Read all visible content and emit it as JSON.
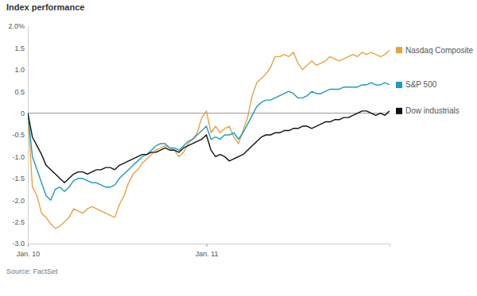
{
  "chart_data": {
    "type": "line",
    "title": "Index performance",
    "source": "Source: FactSet",
    "legend": "right",
    "categories": [
      "Jan. 10",
      null,
      null,
      null,
      null,
      null,
      null,
      null,
      null,
      null,
      null,
      null,
      null,
      null,
      null,
      null,
      null,
      null,
      null,
      null,
      null,
      null,
      null,
      null,
      null,
      null,
      null,
      null,
      null,
      null,
      null,
      null,
      null,
      null,
      null,
      null,
      null,
      null,
      null,
      "Jan. 11",
      null,
      null,
      null,
      null,
      null,
      null,
      null,
      null,
      null,
      null,
      null,
      null,
      null,
      null,
      null,
      null,
      null,
      null,
      null,
      null,
      null,
      null,
      null,
      null,
      null,
      null,
      null,
      null,
      null,
      null,
      null,
      null,
      null,
      null,
      null,
      null,
      null,
      null,
      null,
      null
    ],
    "ylim": [
      -3,
      2
    ],
    "yticks": [
      {
        "value": -3,
        "label": "-3.0"
      },
      -2.5,
      {
        "value": -2,
        "label": "-2.0"
      },
      -1.5,
      {
        "value": -1,
        "label": "-1.0"
      },
      -0.5,
      0,
      0.5,
      {
        "value": 1,
        "label": "1.0"
      },
      1.5,
      {
        "value": 2,
        "label": "2.0%"
      }
    ],
    "series": [
      {
        "name": "Nasdaq Composite",
        "color": "#e8a33d",
        "values": [
          0,
          -1.7,
          -1.9,
          -2.3,
          -2.4,
          -2.55,
          -2.65,
          -2.6,
          -2.5,
          -2.4,
          -2.2,
          -2.25,
          -2.3,
          -2.2,
          -2.15,
          -2.2,
          -2.25,
          -2.3,
          -2.35,
          -2.4,
          -2.1,
          -1.9,
          -1.6,
          -1.4,
          -1.3,
          -1.15,
          -1.05,
          -0.95,
          -0.85,
          -0.8,
          -0.75,
          -0.8,
          -0.85,
          -1.0,
          -0.9,
          -0.7,
          -0.6,
          -0.45,
          -0.1,
          0.05,
          -0.45,
          -0.3,
          -0.45,
          -0.35,
          -0.3,
          -0.55,
          -0.7,
          -0.4,
          -0.1,
          0.4,
          0.7,
          0.8,
          0.9,
          1.05,
          1.3,
          1.3,
          1.35,
          1.3,
          1.4,
          1.15,
          1.0,
          1.1,
          1.2,
          1.1,
          1.15,
          1.2,
          1.3,
          1.25,
          1.2,
          1.25,
          1.3,
          1.35,
          1.3,
          1.4,
          1.35,
          1.4,
          1.35,
          1.3,
          1.35,
          1.45
        ]
      },
      {
        "name": "S&P 500",
        "color": "#1b9cc6",
        "values": [
          0,
          -1.0,
          -1.3,
          -1.6,
          -1.9,
          -2.0,
          -1.75,
          -1.7,
          -1.8,
          -1.7,
          -1.55,
          -1.5,
          -1.5,
          -1.55,
          -1.6,
          -1.6,
          -1.65,
          -1.7,
          -1.7,
          -1.65,
          -1.5,
          -1.4,
          -1.3,
          -1.2,
          -1.1,
          -1.0,
          -0.95,
          -0.85,
          -0.75,
          -0.7,
          -0.7,
          -0.8,
          -0.8,
          -0.85,
          -0.75,
          -0.65,
          -0.6,
          -0.5,
          -0.4,
          -0.3,
          -0.6,
          -0.55,
          -0.6,
          -0.5,
          -0.5,
          -0.45,
          -0.6,
          -0.45,
          -0.25,
          -0.05,
          0.15,
          0.25,
          0.3,
          0.3,
          0.35,
          0.4,
          0.45,
          0.5,
          0.45,
          0.35,
          0.35,
          0.4,
          0.5,
          0.45,
          0.45,
          0.5,
          0.55,
          0.55,
          0.55,
          0.6,
          0.6,
          0.6,
          0.6,
          0.65,
          0.65,
          0.7,
          0.65,
          0.65,
          0.7,
          0.65
        ]
      },
      {
        "name": "Dow industrials",
        "color": "#111111",
        "values": [
          0,
          -0.55,
          -0.75,
          -0.95,
          -1.2,
          -1.3,
          -1.4,
          -1.5,
          -1.6,
          -1.5,
          -1.4,
          -1.35,
          -1.35,
          -1.4,
          -1.35,
          -1.3,
          -1.3,
          -1.25,
          -1.25,
          -1.3,
          -1.2,
          -1.15,
          -1.1,
          -1.05,
          -1.0,
          -0.95,
          -0.95,
          -0.9,
          -0.9,
          -0.85,
          -0.8,
          -0.85,
          -0.85,
          -0.9,
          -0.8,
          -0.75,
          -0.7,
          -0.65,
          -0.6,
          -0.5,
          -0.85,
          -1.0,
          -0.95,
          -1.0,
          -1.1,
          -1.05,
          -1.0,
          -0.95,
          -0.85,
          -0.75,
          -0.65,
          -0.55,
          -0.5,
          -0.5,
          -0.45,
          -0.45,
          -0.4,
          -0.4,
          -0.35,
          -0.35,
          -0.3,
          -0.3,
          -0.35,
          -0.3,
          -0.25,
          -0.2,
          -0.2,
          -0.15,
          -0.15,
          -0.1,
          -0.1,
          -0.05,
          0.0,
          0.05,
          0.05,
          0.0,
          -0.05,
          0.0,
          -0.05,
          0.05
        ]
      }
    ]
  }
}
